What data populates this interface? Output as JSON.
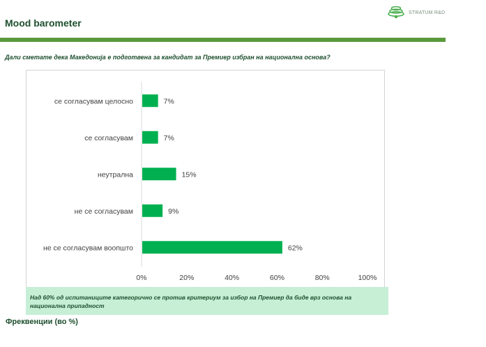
{
  "header": {
    "title": "Mood barometer",
    "logo_text": "STRATUM R&D"
  },
  "question": "Дали сметате дека Македонија е подготвена за кандидат за Премиер избран на национална основа?",
  "note": "Над 60% од испитаниците категорично се против критериум за избор на Премиер да биде врз основа на национална припадност",
  "footer_label": "Фреквенции (во %)",
  "colors": {
    "bar": "#00b050",
    "accent_rule": "#5a9a3c",
    "note_bg": "#c6efd6",
    "text_dark": "#1e4f2e"
  },
  "chart_data": {
    "type": "bar",
    "orientation": "horizontal",
    "title": "",
    "xlabel": "",
    "ylabel": "",
    "categories": [
      "се согласувам целосно",
      "се согласувам",
      "неутрална",
      "не се согласувам",
      "не се согласувам воопшто"
    ],
    "values": [
      7,
      7,
      15,
      9,
      62
    ],
    "value_labels": [
      "7%",
      "7%",
      "15%",
      "9%",
      "62%"
    ],
    "xlim": [
      0,
      100
    ],
    "x_ticks": [
      0,
      20,
      40,
      60,
      80,
      100
    ],
    "x_tick_labels": [
      "0%",
      "20%",
      "40%",
      "60%",
      "80%",
      "100%"
    ],
    "grid": false,
    "legend": "none"
  }
}
